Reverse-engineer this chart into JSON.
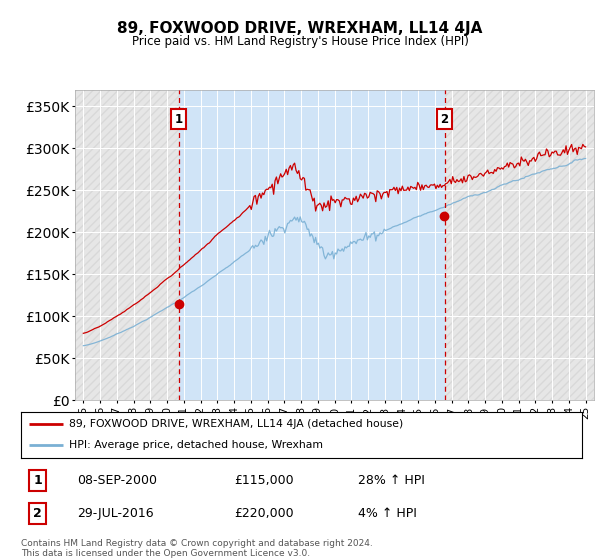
{
  "title": "89, FOXWOOD DRIVE, WREXHAM, LL14 4JA",
  "subtitle": "Price paid vs. HM Land Registry's House Price Index (HPI)",
  "plot_bg_color": "#e8f0f8",
  "shaded_color": "#d0e4f7",
  "outer_bg_color": "#e8e8e8",
  "ytick_values": [
    0,
    50000,
    100000,
    150000,
    200000,
    250000,
    300000,
    350000
  ],
  "ylim": [
    0,
    370000
  ],
  "xlim_start": 1994.5,
  "xlim_end": 2025.5,
  "sale1_date": 2000.69,
  "sale1_price": 115000,
  "sale1_label": "1",
  "sale1_text": "08-SEP-2000",
  "sale1_price_text": "£115,000",
  "sale1_hpi_text": "28% ↑ HPI",
  "sale2_date": 2016.58,
  "sale2_price": 220000,
  "sale2_label": "2",
  "sale2_text": "29-JUL-2016",
  "sale2_price_text": "£220,000",
  "sale2_hpi_text": "4% ↑ HPI",
  "red_color": "#cc0000",
  "blue_color": "#7ab0d4",
  "legend_label1": "89, FOXWOOD DRIVE, WREXHAM, LL14 4JA (detached house)",
  "legend_label2": "HPI: Average price, detached house, Wrexham",
  "footer": "Contains HM Land Registry data © Crown copyright and database right 2024.\nThis data is licensed under the Open Government Licence v3.0.",
  "x_ticks": [
    1995,
    1996,
    1997,
    1998,
    1999,
    2000,
    2001,
    2002,
    2003,
    2004,
    2005,
    2006,
    2007,
    2008,
    2009,
    2010,
    2011,
    2012,
    2013,
    2014,
    2015,
    2016,
    2017,
    2018,
    2019,
    2020,
    2021,
    2022,
    2023,
    2024,
    2025
  ]
}
